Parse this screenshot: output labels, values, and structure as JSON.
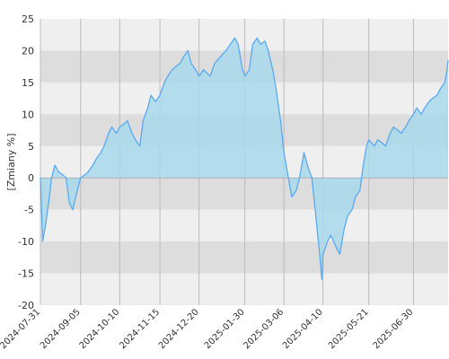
{
  "chart_data": {
    "type": "area",
    "ylabel": "[Zmiany %]",
    "ylim": [
      -20,
      25
    ],
    "yticks": [
      25,
      20,
      15,
      10,
      5,
      0,
      -5,
      -10,
      -15,
      -20
    ],
    "x_tick_labels": [
      "2024-07-31",
      "2024-09-05",
      "2024-10-10",
      "2024-11-15",
      "2024-12-20",
      "2025-01-30",
      "2025-03-06",
      "2025-04-10",
      "2025-05-21",
      "2025-06-30"
    ],
    "grid": true,
    "band_colors": [
      "#dddddd",
      "#efefef"
    ],
    "line_color": "#5aaaf0",
    "fill_color": "#a8d8ec",
    "series": [
      {
        "points": [
          [
            "2024-07-31",
            0
          ],
          [
            "2024-08-02",
            -10
          ],
          [
            "2024-08-05",
            -7
          ],
          [
            "2024-08-08",
            -3
          ],
          [
            "2024-08-10",
            0
          ],
          [
            "2024-08-13",
            2
          ],
          [
            "2024-08-16",
            1
          ],
          [
            "2024-08-20",
            0.5
          ],
          [
            "2024-08-23",
            0
          ],
          [
            "2024-08-26",
            -4
          ],
          [
            "2024-08-29",
            -5
          ],
          [
            "2024-09-02",
            -2
          ],
          [
            "2024-09-05",
            0
          ],
          [
            "2024-09-09",
            0.5
          ],
          [
            "2024-09-12",
            1
          ],
          [
            "2024-09-16",
            2
          ],
          [
            "2024-09-19",
            3
          ],
          [
            "2024-09-23",
            4
          ],
          [
            "2024-09-26",
            5
          ],
          [
            "2024-09-30",
            7
          ],
          [
            "2024-10-03",
            8
          ],
          [
            "2024-10-07",
            7
          ],
          [
            "2024-10-10",
            8
          ],
          [
            "2024-10-14",
            8.5
          ],
          [
            "2024-10-17",
            9
          ],
          [
            "2024-10-21",
            7
          ],
          [
            "2024-10-24",
            6
          ],
          [
            "2024-10-28",
            5
          ],
          [
            "2024-10-31",
            9
          ],
          [
            "2024-11-04",
            11
          ],
          [
            "2024-11-07",
            13
          ],
          [
            "2024-11-11",
            12
          ],
          [
            "2024-11-15",
            13
          ],
          [
            "2024-11-19",
            15
          ],
          [
            "2024-11-22",
            16
          ],
          [
            "2024-11-26",
            17
          ],
          [
            "2024-11-29",
            17.5
          ],
          [
            "2024-12-03",
            18
          ],
          [
            "2024-12-06",
            19
          ],
          [
            "2024-12-10",
            20
          ],
          [
            "2024-12-13",
            18
          ],
          [
            "2024-12-17",
            17
          ],
          [
            "2024-12-20",
            16
          ],
          [
            "2024-12-24",
            17
          ],
          [
            "2024-12-30",
            16
          ],
          [
            "2025-01-03",
            18
          ],
          [
            "2025-01-08",
            19
          ],
          [
            "2025-01-13",
            20
          ],
          [
            "2025-01-17",
            21
          ],
          [
            "2025-01-21",
            22
          ],
          [
            "2025-01-24",
            21
          ],
          [
            "2025-01-28",
            17
          ],
          [
            "2025-01-30",
            16
          ],
          [
            "2025-02-03",
            17
          ],
          [
            "2025-02-06",
            21
          ],
          [
            "2025-02-10",
            22
          ],
          [
            "2025-02-13",
            21
          ],
          [
            "2025-02-17",
            21.5
          ],
          [
            "2025-02-20",
            20
          ],
          [
            "2025-02-24",
            17
          ],
          [
            "2025-02-27",
            14
          ],
          [
            "2025-03-03",
            9
          ],
          [
            "2025-03-06",
            4
          ],
          [
            "2025-03-10",
            0
          ],
          [
            "2025-03-13",
            -3
          ],
          [
            "2025-03-17",
            -2
          ],
          [
            "2025-03-20",
            0
          ],
          [
            "2025-03-24",
            4
          ],
          [
            "2025-03-27",
            2
          ],
          [
            "2025-03-31",
            0
          ],
          [
            "2025-04-03",
            -5
          ],
          [
            "2025-04-07",
            -12
          ],
          [
            "2025-04-09",
            -16
          ],
          [
            "2025-04-10",
            -12
          ],
          [
            "2025-04-14",
            -10
          ],
          [
            "2025-04-17",
            -9
          ],
          [
            "2025-04-22",
            -11
          ],
          [
            "2025-04-25",
            -12
          ],
          [
            "2025-04-29",
            -8
          ],
          [
            "2025-05-02",
            -6
          ],
          [
            "2025-05-06",
            -5
          ],
          [
            "2025-05-09",
            -3
          ],
          [
            "2025-05-13",
            -2
          ],
          [
            "2025-05-16",
            2
          ],
          [
            "2025-05-19",
            5
          ],
          [
            "2025-05-21",
            6
          ],
          [
            "2025-05-26",
            5
          ],
          [
            "2025-05-29",
            6
          ],
          [
            "2025-06-02",
            5.5
          ],
          [
            "2025-06-05",
            5
          ],
          [
            "2025-06-09",
            7
          ],
          [
            "2025-06-12",
            8
          ],
          [
            "2025-06-16",
            7.5
          ],
          [
            "2025-06-19",
            7
          ],
          [
            "2025-06-23",
            8
          ],
          [
            "2025-06-26",
            9
          ],
          [
            "2025-06-30",
            10
          ],
          [
            "2025-07-03",
            11
          ],
          [
            "2025-07-07",
            10
          ],
          [
            "2025-07-10",
            11
          ],
          [
            "2025-07-14",
            12
          ],
          [
            "2025-07-17",
            12.5
          ],
          [
            "2025-07-21",
            13
          ],
          [
            "2025-07-24",
            14
          ],
          [
            "2025-07-28",
            15
          ],
          [
            "2025-07-30",
            17
          ],
          [
            "2025-07-31",
            18.5
          ]
        ]
      }
    ]
  }
}
